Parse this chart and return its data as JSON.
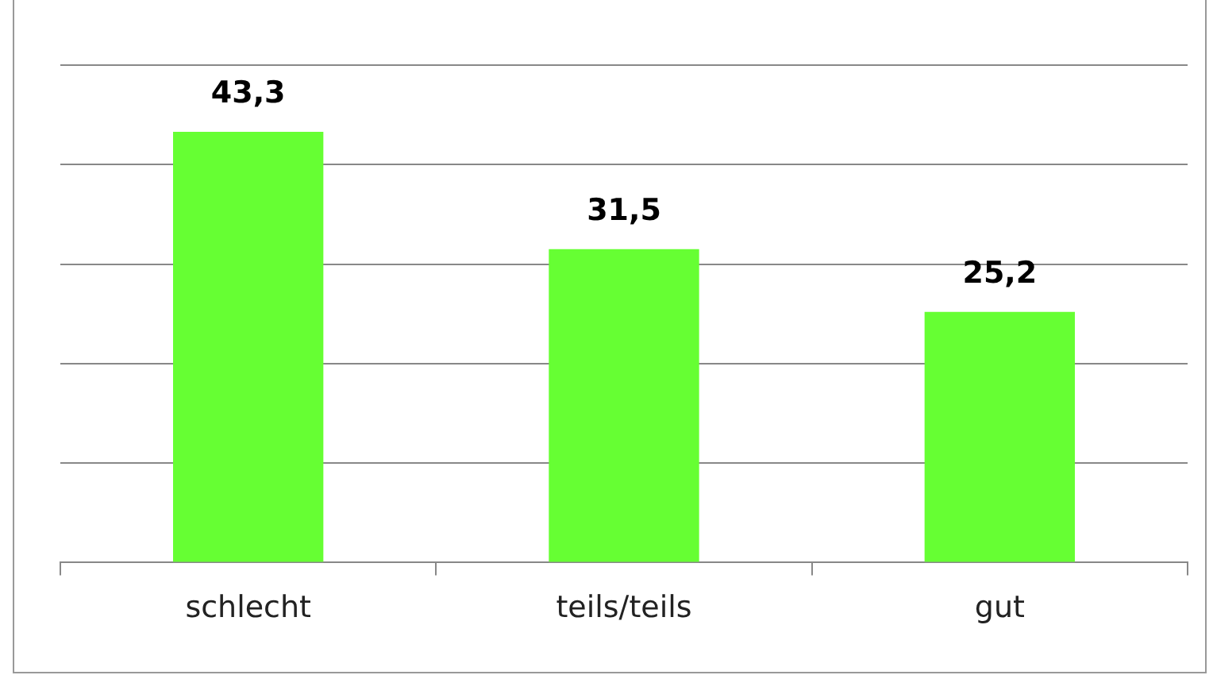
{
  "chart_data": {
    "type": "bar",
    "categories": [
      "schlecht",
      "teils/teils",
      "gut"
    ],
    "values": [
      43.3,
      31.5,
      25.2
    ],
    "color": "#66ff33",
    "value_labels": [
      "43,3",
      "31,5",
      "25,2"
    ],
    "ylim": [
      0,
      50
    ],
    "yticks": [
      {
        "value": 0,
        "label": null
      },
      {
        "value": 10,
        "label": null
      },
      {
        "value": 20,
        "label": null
      },
      {
        "value": 30,
        "label": null
      },
      {
        "value": 40,
        "label": null
      },
      {
        "value": 50,
        "label": null
      }
    ],
    "tick_labels": "x",
    "grid": "y",
    "legend": false
  }
}
